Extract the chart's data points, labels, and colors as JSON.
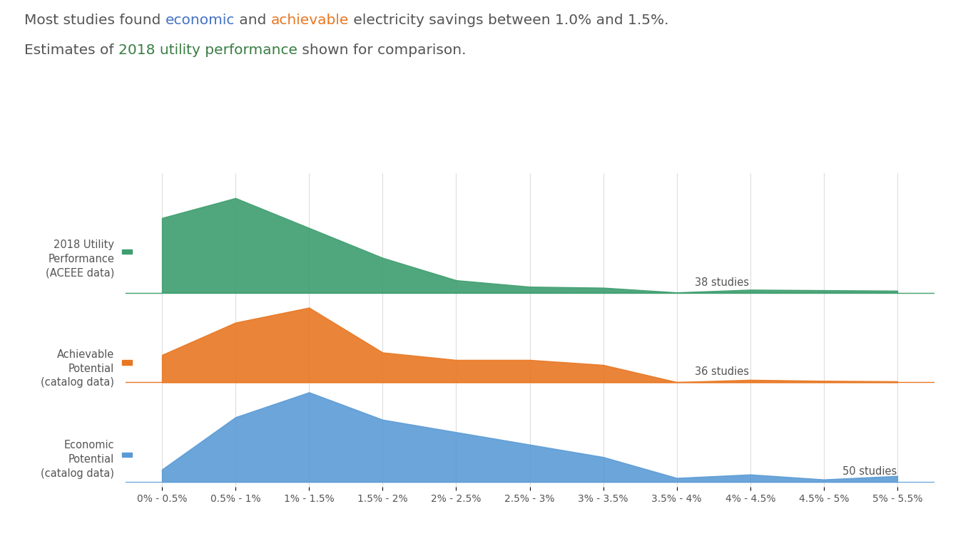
{
  "title_parts": [
    {
      "text": "Most studies found ",
      "color": "#555555"
    },
    {
      "text": "economic",
      "color": "#4472C4"
    },
    {
      "text": " and ",
      "color": "#555555"
    },
    {
      "text": "achievable",
      "color": "#E87722"
    },
    {
      "text": " electricity savings between 1.0% and 1.5%.",
      "color": "#555555"
    }
  ],
  "title_line2_parts": [
    {
      "text": "Estimates of ",
      "color": "#555555"
    },
    {
      "text": "2018 utility performance",
      "color": "#3A7D44"
    },
    {
      "text": " shown for comparison.",
      "color": "#555555"
    }
  ],
  "categories": [
    "0% - 0.5%",
    "0.5% - 1%",
    "1% - 1.5%",
    "1.5% - 2%",
    "2% - 2.5%",
    "2.5% - 3%",
    "3% - 3.5%",
    "3.5% - 4%",
    "4% - 4.5%",
    "4.5% - 5%",
    "5% - 5.5%"
  ],
  "green_data": [
    15,
    19,
    13,
    7,
    2.5,
    1.2,
    1.0,
    0.05,
    0.6,
    0.5,
    0.4
  ],
  "orange_data": [
    5.5,
    12,
    15,
    6,
    4.5,
    4.5,
    3.5,
    0.05,
    0.5,
    0.3,
    0.2
  ],
  "blue_data": [
    2.5,
    13,
    18,
    12.5,
    10,
    7.5,
    5,
    0.8,
    1.5,
    0.5,
    1.2
  ],
  "green_color": "#3E9E6F",
  "orange_color": "#E87722",
  "blue_color": "#5B9BD5",
  "green_label": "2018 Utility\nPerformance\n(ACEEE data)",
  "orange_label": "Achievable\nPotential\n(catalog data)",
  "blue_label": "Economic\nPotential\n(catalog data)",
  "green_studies": "38 studies",
  "orange_studies": "36 studies",
  "blue_studies": "50 studies",
  "background_color": "#FFFFFF",
  "grid_color": "#DDDDDD",
  "title_fontsize": 14.5,
  "label_fontsize": 10.5,
  "tick_fontsize": 10
}
